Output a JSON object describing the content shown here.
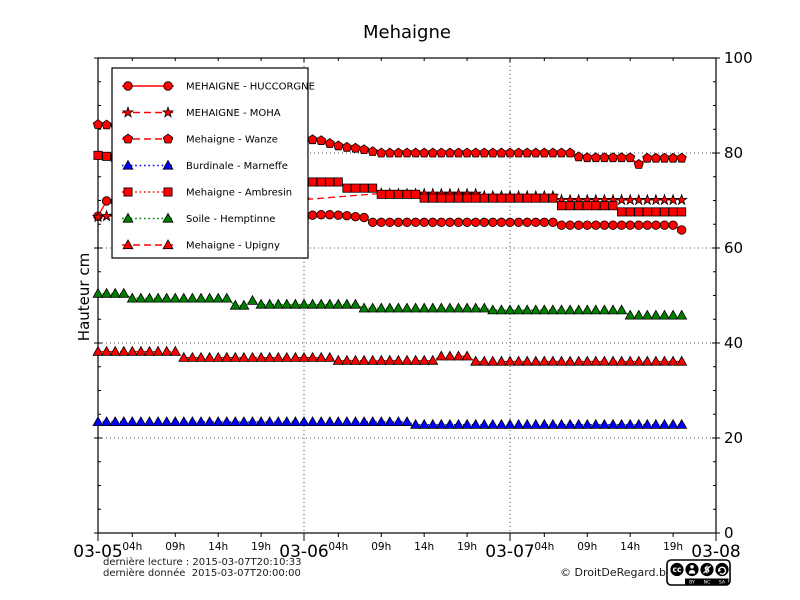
{
  "footer": {
    "last_reading": "dernière lecture : 2015-03-07T20:10:33",
    "last_data": "dernière donnée  2015-03-07T20:00:00",
    "copyright": "© DroitDeRegard.be",
    "cc_labels": [
      "BY",
      "NC",
      "SA"
    ]
  },
  "chart_data": {
    "type": "line",
    "title": "Mehaigne",
    "ylabel": "Hauteur cm",
    "ylim": [
      0,
      100
    ],
    "x_hours_total": 72,
    "grid": {
      "y_values": [
        20,
        40,
        60,
        80
      ],
      "x_hours": [
        24,
        48
      ],
      "style": "dotted"
    },
    "y_major_ticks": [
      0,
      20,
      40,
      60,
      80,
      100
    ],
    "y_minor_step": 5,
    "y_tick_side": "right",
    "day_ticks": [
      {
        "h": 0,
        "label": "03-05"
      },
      {
        "h": 24,
        "label": "03-06"
      },
      {
        "h": 48,
        "label": "03-07"
      },
      {
        "h": 72,
        "label": "03-08"
      }
    ],
    "hour_ticks": [
      {
        "h": 4,
        "label": "04h"
      },
      {
        "h": 9,
        "label": "09h"
      },
      {
        "h": 14,
        "label": "14h"
      },
      {
        "h": 19,
        "label": "19h"
      },
      {
        "h": 28,
        "label": "04h"
      },
      {
        "h": 33,
        "label": "09h"
      },
      {
        "h": 38,
        "label": "14h"
      },
      {
        "h": 43,
        "label": "19h"
      },
      {
        "h": 52,
        "label": "04h"
      },
      {
        "h": 57,
        "label": "09h"
      },
      {
        "h": 62,
        "label": "14h"
      },
      {
        "h": 67,
        "label": "19h"
      }
    ],
    "legend_position": "upper-left",
    "series": [
      {
        "name": "MEHAIGNE - HUCCORGNE",
        "color": "#ff0000",
        "marker": "circle",
        "line": "solid",
        "values": [
          66.7,
          69.9,
          69.8,
          69.6,
          69.4,
          69.2,
          69.0,
          68.8,
          68.6,
          68.4,
          68.2,
          68.0,
          67.8,
          67.6,
          67.4,
          67.2,
          67.0,
          66.9,
          66.8,
          66.7,
          66.6,
          66.5,
          66.4,
          66.0,
          65.3,
          66.9,
          67.0,
          67.0,
          66.9,
          66.8,
          66.6,
          66.4,
          65.4,
          65.4,
          65.4,
          65.4,
          65.4,
          65.4,
          65.4,
          65.4,
          65.4,
          65.4,
          65.4,
          65.4,
          65.4,
          65.4,
          65.4,
          65.4,
          65.4,
          65.4,
          65.4,
          65.4,
          65.4,
          65.4,
          64.8,
          64.8,
          64.8,
          64.8,
          64.8,
          64.8,
          64.8,
          64.8,
          64.8,
          64.8,
          64.8,
          64.8,
          64.8,
          64.8,
          63.8
        ]
      },
      {
        "name": "MEHAIGNE - MOHA",
        "color": "#ff0000",
        "marker": "star",
        "line": "dashed",
        "values": [
          66.5,
          66.7,
          66.8,
          67.0,
          67.1,
          67.3,
          67.4,
          67.6,
          67.7,
          67.9,
          68.0,
          68.2,
          68.3,
          68.5,
          68.6,
          68.8,
          68.9,
          69.1,
          69.2,
          69.4,
          69.5,
          69.7,
          69.8,
          70.0,
          70.2,
          null,
          null,
          null,
          null,
          null,
          null,
          null,
          null,
          71.5,
          71.4,
          71.4,
          71.4,
          71.4,
          71.4,
          71.4,
          71.4,
          71.4,
          71.4,
          71.4,
          71.4,
          70.9,
          70.9,
          70.9,
          70.9,
          70.9,
          70.9,
          70.9,
          70.9,
          70.9,
          70.1,
          70.1,
          70.1,
          70.1,
          70.1,
          70.1,
          70.1,
          70.1,
          70.1,
          70.1,
          70.1,
          70.1,
          70.1,
          70.1,
          70.1
        ]
      },
      {
        "name": "Mehaigne - Wanze",
        "color": "#ff0000",
        "marker": "pentagon",
        "line": "dashed",
        "values": [
          86.0,
          85.9,
          85.8,
          85.6,
          85.5,
          85.3,
          85.2,
          85.0,
          84.9,
          84.7,
          84.6,
          84.4,
          84.3,
          84.1,
          84.0,
          83.9,
          83.8,
          83.7,
          83.6,
          83.5,
          83.4,
          83.3,
          83.3,
          83.2,
          83.0,
          82.8,
          82.6,
          82.0,
          81.5,
          81.2,
          81.0,
          80.7,
          80.3,
          80.0,
          80.0,
          80.0,
          80.0,
          80.0,
          80.0,
          80.0,
          80.0,
          80.0,
          80.0,
          80.0,
          80.0,
          80.0,
          80.0,
          80.0,
          80.0,
          80.0,
          80.0,
          80.0,
          80.0,
          80.0,
          80.0,
          80.0,
          79.2,
          79.0,
          79.0,
          79.0,
          79.0,
          79.0,
          79.0,
          77.6,
          78.9,
          78.9,
          78.9,
          78.9,
          78.9
        ]
      },
      {
        "name": "Burdinale - Marneffe",
        "color": "#0000ff",
        "marker": "triangle",
        "line": "dotted",
        "values": [
          23.4,
          23.4,
          23.4,
          23.4,
          23.4,
          23.4,
          23.4,
          23.4,
          23.4,
          23.4,
          23.4,
          23.4,
          23.4,
          23.4,
          23.4,
          23.4,
          23.4,
          23.4,
          23.4,
          23.4,
          23.4,
          23.4,
          23.4,
          23.4,
          23.4,
          23.4,
          23.4,
          23.4,
          23.4,
          23.4,
          23.4,
          23.4,
          23.4,
          23.4,
          23.4,
          23.4,
          23.4,
          22.8,
          22.8,
          22.8,
          22.8,
          22.8,
          22.8,
          22.8,
          22.8,
          22.8,
          22.8,
          22.8,
          22.8,
          22.8,
          22.8,
          22.8,
          22.8,
          22.8,
          22.8,
          22.8,
          22.8,
          22.8,
          22.8,
          22.8,
          22.8,
          22.8,
          22.8,
          22.8,
          22.8,
          22.8,
          22.8,
          22.8,
          22.8
        ]
      },
      {
        "name": "Mehaigne - Ambresin",
        "color": "#ff0000",
        "marker": "square",
        "line": "dotted",
        "values": [
          79.5,
          79.3,
          79.1,
          78.8,
          78.6,
          78.4,
          78.2,
          77.9,
          77.7,
          77.5,
          77.3,
          77.0,
          76.8,
          76.6,
          76.4,
          76.1,
          75.9,
          75.7,
          75.5,
          75.2,
          75.0,
          74.8,
          74.6,
          74.3,
          73.9,
          73.9,
          73.9,
          73.9,
          73.9,
          72.6,
          72.6,
          72.6,
          72.6,
          71.3,
          71.3,
          71.3,
          71.3,
          71.3,
          70.5,
          70.5,
          70.5,
          70.5,
          70.5,
          70.5,
          70.5,
          70.5,
          70.5,
          70.5,
          70.5,
          70.5,
          70.5,
          70.5,
          70.5,
          70.5,
          68.9,
          68.9,
          68.9,
          68.9,
          68.9,
          68.9,
          68.9,
          67.6,
          67.6,
          67.6,
          67.6,
          67.6,
          67.6,
          67.6,
          67.6
        ]
      },
      {
        "name": "Soile - Hemptinne",
        "color": "#008000",
        "marker": "triangle",
        "line": "dotted",
        "values": [
          50.4,
          50.4,
          50.4,
          50.4,
          49.4,
          49.4,
          49.4,
          49.4,
          49.4,
          49.4,
          49.4,
          49.4,
          49.4,
          49.4,
          49.4,
          49.4,
          47.9,
          47.9,
          48.9,
          48.1,
          48.1,
          48.1,
          48.1,
          48.1,
          48.1,
          48.1,
          48.1,
          48.1,
          48.1,
          48.1,
          48.1,
          47.3,
          47.3,
          47.3,
          47.3,
          47.3,
          47.3,
          47.3,
          47.3,
          47.3,
          47.3,
          47.3,
          47.3,
          47.3,
          47.3,
          47.3,
          46.9,
          46.9,
          46.9,
          46.9,
          46.9,
          46.9,
          46.9,
          46.9,
          46.9,
          46.9,
          46.9,
          46.9,
          46.9,
          46.9,
          46.9,
          46.9,
          45.8,
          45.8,
          45.8,
          45.8,
          45.8,
          45.8,
          45.8
        ]
      },
      {
        "name": "Mehaigne - Upigny",
        "color": "#ff0000",
        "marker": "triangle",
        "line": "dashed",
        "values": [
          38.2,
          38.2,
          38.2,
          38.2,
          38.2,
          38.2,
          38.2,
          38.2,
          38.2,
          38.2,
          36.9,
          36.9,
          36.9,
          36.9,
          36.9,
          36.9,
          36.9,
          36.9,
          36.9,
          36.9,
          36.9,
          36.9,
          36.9,
          36.9,
          36.9,
          36.9,
          36.9,
          36.9,
          36.3,
          36.3,
          36.3,
          36.3,
          36.3,
          36.3,
          36.3,
          36.3,
          36.3,
          36.3,
          36.3,
          36.3,
          37.2,
          37.2,
          37.2,
          37.2,
          36.1,
          36.1,
          36.1,
          36.1,
          36.1,
          36.1,
          36.1,
          36.1,
          36.1,
          36.1,
          36.1,
          36.1,
          36.1,
          36.1,
          36.1,
          36.1,
          36.1,
          36.1,
          36.1,
          36.1,
          36.1,
          36.1,
          36.1,
          36.1,
          36.1
        ]
      }
    ]
  }
}
